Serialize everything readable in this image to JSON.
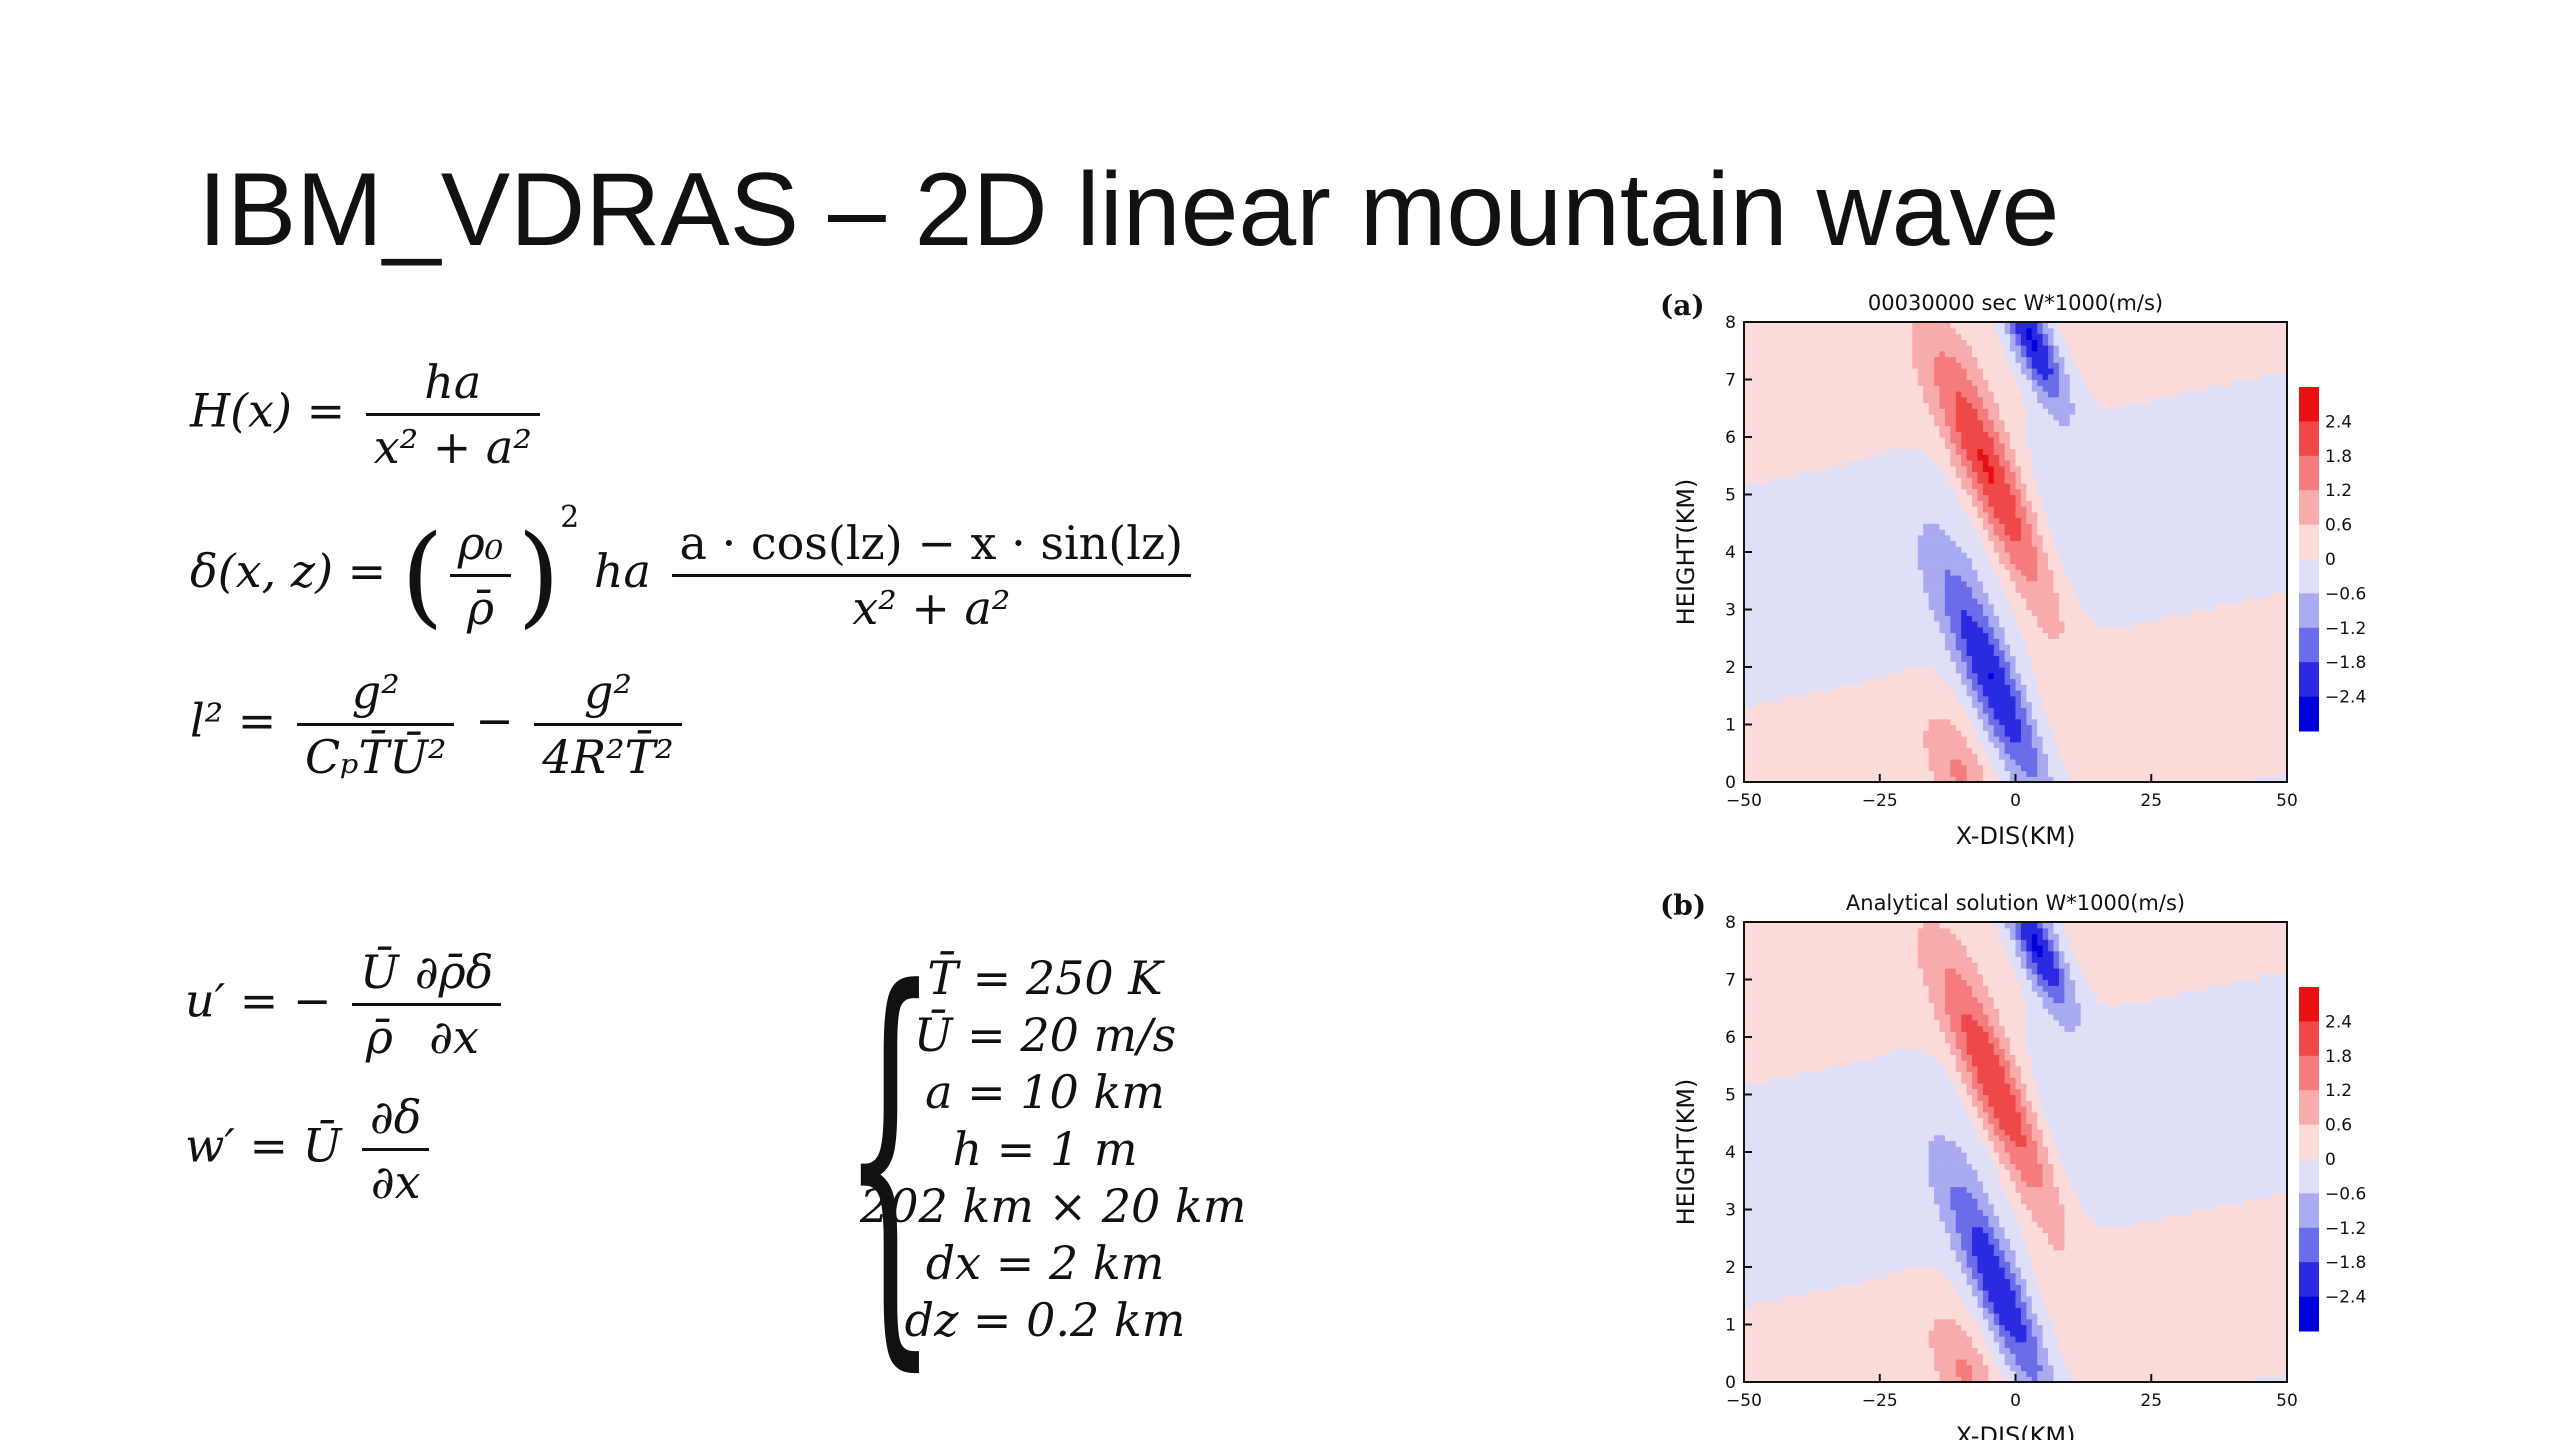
{
  "slide": {
    "title": "IBM_VDRAS – 2D linear mountain wave"
  },
  "equations": {
    "H": {
      "lhs": "H(x) =",
      "num": "ha",
      "den": "x² + a²"
    },
    "delta": {
      "lhs": "δ(x, z) =",
      "ratio_num": "ρ₀",
      "ratio_den": "ρ̄",
      "power": "2",
      "coef": "ha",
      "num": "a · cos(lz) − x · sin(lz)",
      "den": "x² + a²"
    },
    "l2": {
      "lhs": "l² =",
      "num1": "g²",
      "den1": "CₚT̄Ū²",
      "op": "−",
      "num2": "g²",
      "den2": "4R²T̄²"
    },
    "u": {
      "lhs": "u′ = −",
      "num1": "Ū",
      "den1": "ρ̄",
      "num2": "∂ρ̄δ",
      "den2": "∂x"
    },
    "w": {
      "lhs": "w′ = Ū",
      "num": "∂δ",
      "den": "∂x"
    }
  },
  "parameters": [
    "T̄ = 250 K",
    "Ū = 20 m/s",
    "a = 10 km",
    "h = 1 m",
    "202 km × 20 km",
    "dx = 2 km",
    "dz = 0.2 km"
  ],
  "chart_data": [
    {
      "type": "heatmap",
      "panel_label": "(a)",
      "title": "00030000 sec W*1000(m/s)",
      "xlabel": "X-DIS(KM)",
      "ylabel": "HEIGHT(KM)",
      "xlim": [
        -50,
        50
      ],
      "ylim": [
        0,
        8
      ],
      "xticks": [
        "−50",
        "−25",
        "0",
        "25",
        "50"
      ],
      "yticks": [
        "0",
        "1",
        "2",
        "3",
        "4",
        "5",
        "6",
        "7",
        "8"
      ],
      "colorbar_labels": [
        "2.4",
        "1.8",
        "1.2",
        "0.6",
        "0",
        "−0.6",
        "−1.2",
        "−1.8",
        "−2.4"
      ],
      "levels": [
        2.4,
        1.8,
        1.2,
        0.6,
        0,
        -0.6,
        -1.2,
        -1.8,
        -2.4
      ],
      "colors": [
        "#e81010",
        "#ee4848",
        "#f47c7c",
        "#f8abab",
        "#fbdada",
        "#dfe0f8",
        "#a9aaf0",
        "#6b6ce8",
        "#2a2ae0",
        "#0000dd"
      ],
      "lobes": [
        {
          "x": -4,
          "z": 5.2,
          "peak": 2.6,
          "sx": 5.2,
          "sz": 2.2
        },
        {
          "x": -3.5,
          "z": 1.6,
          "peak": -2.6,
          "sx": 5.0,
          "sz": 2.0
        },
        {
          "x": 3,
          "z": 7.7,
          "peak": -2.8,
          "sx": 4.0,
          "sz": 1.2
        },
        {
          "x": -10,
          "z": 0.1,
          "peak": 1.0,
          "sx": 4.5,
          "sz": 1.0
        }
      ]
    },
    {
      "type": "heatmap",
      "panel_label": "(b)",
      "title": "Analytical solution W*1000(m/s)",
      "xlabel": "X-DIS(KM)",
      "ylabel": "HEIGHT(KM)",
      "xlim": [
        -50,
        50
      ],
      "ylim": [
        0,
        8
      ],
      "xticks": [
        "−50",
        "−25",
        "0",
        "25",
        "50"
      ],
      "yticks": [
        "0",
        "1",
        "2",
        "3",
        "4",
        "5",
        "6",
        "7",
        "8"
      ],
      "colorbar_labels": [
        "2.4",
        "1.8",
        "1.2",
        "0.6",
        "0",
        "−0.6",
        "−1.2",
        "−1.8",
        "−2.4"
      ],
      "levels": [
        2.4,
        1.8,
        1.2,
        0.6,
        0,
        -0.6,
        -1.2,
        -1.8,
        -2.4
      ],
      "colors": [
        "#e81010",
        "#ee4848",
        "#f47c7c",
        "#f8abab",
        "#fbdada",
        "#dfe0f8",
        "#a9aaf0",
        "#6b6ce8",
        "#2a2ae0",
        "#0000dd"
      ],
      "lobes": [
        {
          "x": -3,
          "z": 5.0,
          "peak": 2.6,
          "sx": 5.0,
          "sz": 2.1
        },
        {
          "x": -2.5,
          "z": 1.5,
          "peak": -2.6,
          "sx": 4.8,
          "sz": 1.9
        },
        {
          "x": 4,
          "z": 7.6,
          "peak": -2.8,
          "sx": 4.0,
          "sz": 1.2
        },
        {
          "x": -9,
          "z": 0.1,
          "peak": 1.0,
          "sx": 4.5,
          "sz": 1.0
        }
      ]
    }
  ]
}
